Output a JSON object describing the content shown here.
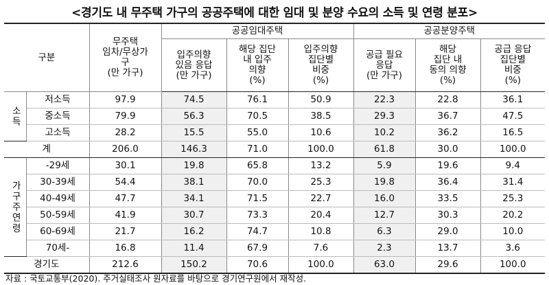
{
  "title": "<경기도 내 무주택 가구의 공공주택에 대한 임대 및 분양 수요의 소득 및 연령 분포>",
  "table": {
    "header": {
      "rowgroup": "구분",
      "first": "무주택\n임차/무상가\n구\n(만 가구)",
      "groups": [
        {
          "name": "공공임대주택",
          "columns": [
            "입주의향\n있음 응답\n(만 가구)",
            "해당 집단\n내 입주\n의향\n(%)",
            "입주의향\n집단별\n비중\n(%)"
          ]
        },
        {
          "name": "공공분양주택",
          "columns": [
            "공급 필요\n응답\n(만 가구)",
            "해당\n집단 내\n동의 의향\n(%)",
            "공급 응답\n집단별\n비중\n(%)"
          ]
        }
      ]
    },
    "sections": [
      {
        "group": "소득",
        "rows": [
          {
            "label": "저소득",
            "values": [
              "97.9",
              "74.5",
              "76.1",
              "50.9",
              "22.3",
              "22.8",
              "36.1"
            ]
          },
          {
            "label": "중소득",
            "values": [
              "79.9",
              "56.3",
              "70.5",
              "38.5",
              "29.3",
              "36.7",
              "47.5"
            ]
          },
          {
            "label": "고소득",
            "values": [
              "28.2",
              "15.5",
              "55.0",
              "10.6",
              "10.2",
              "36.2",
              "16.5"
            ]
          }
        ]
      },
      {
        "rows": [
          {
            "label": "계",
            "values": [
              "206.0",
              "146.3",
              "71.0",
              "100.0",
              "61.8",
              "30.0",
              "100.0"
            ]
          }
        ]
      },
      {
        "group": "가구주연령",
        "rows": [
          {
            "label": "-29세",
            "values": [
              "30.1",
              "19.8",
              "65.8",
              "13.2",
              "5.9",
              "19.6",
              "9.4"
            ]
          },
          {
            "label": "30-39세",
            "values": [
              "54.4",
              "38.1",
              "70.0",
              "25.3",
              "19.8",
              "36.4",
              "31.4"
            ]
          },
          {
            "label": "40-49세",
            "values": [
              "47.7",
              "34.1",
              "71.5",
              "22.7",
              "16.0",
              "33.5",
              "25.3"
            ]
          },
          {
            "label": "50-59세",
            "values": [
              "41.9",
              "30.7",
              "73.3",
              "20.4",
              "12.7",
              "30.3",
              "20.2"
            ]
          },
          {
            "label": "60-69세",
            "values": [
              "21.7",
              "16.2",
              "74.7",
              "10.8",
              "6.3",
              "29.0",
              "10.0"
            ]
          },
          {
            "label": "70세-",
            "values": [
              "16.8",
              "11.4",
              "67.9",
              "7.6",
              "2.3",
              "13.7",
              "3.6"
            ]
          }
        ]
      },
      {
        "rows": [
          {
            "label": "경기도",
            "values": [
              "212.6",
              "150.2",
              "70.6",
              "100.0",
              "63.0",
              "29.6",
              "100.0"
            ]
          }
        ]
      }
    ]
  },
  "source": "자료 : 국토교통부(2020). 주거실태조사 원자료를 바탕으로 경기연구원에서 재작성."
}
